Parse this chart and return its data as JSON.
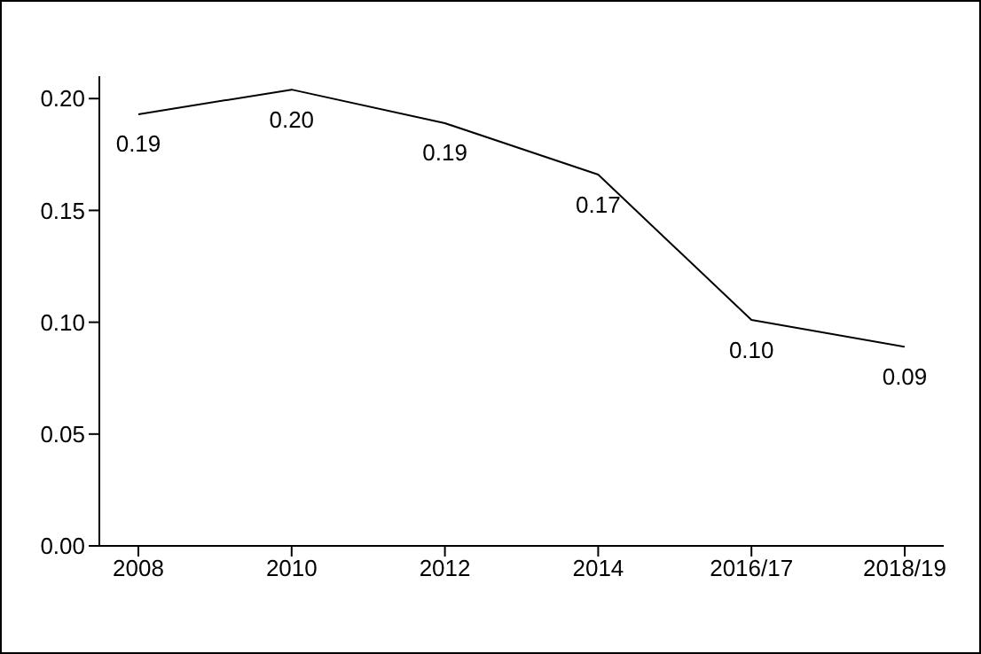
{
  "chart_data": {
    "type": "line",
    "categories": [
      "2008",
      "2010",
      "2012",
      "2014",
      "2016/17",
      "2018/19"
    ],
    "values": [
      0.193,
      0.204,
      0.189,
      0.166,
      0.101,
      0.089
    ],
    "value_labels": [
      "0.19",
      "0.20",
      "0.19",
      "0.17",
      "0.10",
      "0.09"
    ],
    "color": "#000000",
    "ylim": [
      0,
      0.21
    ],
    "yticks": [
      {
        "value": 0,
        "label": "0.00"
      },
      {
        "value": 0.05,
        "label": "0.05"
      },
      {
        "value": 0.1,
        "label": "0.10"
      },
      {
        "value": 0.15,
        "label": "0.15"
      },
      {
        "value": 0.2,
        "label": "0.20"
      }
    ],
    "grid": false,
    "marker": "none",
    "line_style": "solid"
  }
}
